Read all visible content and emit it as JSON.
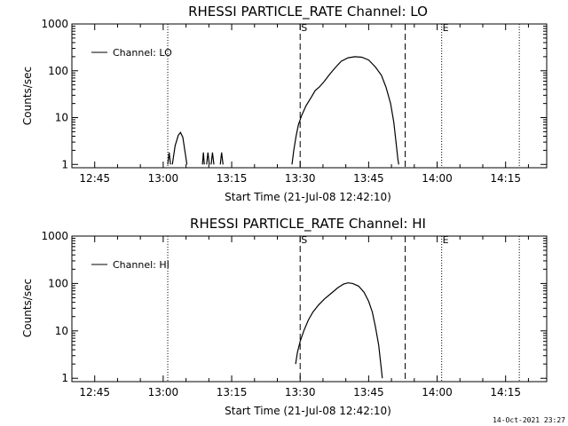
{
  "chart_data": [
    {
      "type": "line",
      "title": "RHESSI PARTICLE_RATE Channel: LO",
      "xlabel": "Start Time (21-Jul-08 12:42:10)",
      "ylabel": "Counts/sec",
      "y_scale": "log",
      "ylim": [
        0.85,
        1000
      ],
      "xlim": [
        "12:40",
        "14:24"
      ],
      "x_ticks": [
        "12:45",
        "13:00",
        "13:15",
        "13:30",
        "13:45",
        "14:00",
        "14:15"
      ],
      "y_ticks": [
        "1",
        "10",
        "100",
        "1000"
      ],
      "legend": {
        "placement": "top-left",
        "entries": [
          "Channel: LO"
        ]
      },
      "markers": [
        {
          "time": "13:30",
          "style": "dashed",
          "label": "S"
        },
        {
          "time": "13:53",
          "style": "dashed",
          "label": ""
        },
        {
          "time": "13:01",
          "style": "dotted",
          "label": ""
        },
        {
          "time": "14:01",
          "style": "dotted",
          "label": "E"
        },
        {
          "time": "14:18",
          "style": "dotted",
          "label": ""
        }
      ],
      "series": [
        {
          "name": "Channel: LO",
          "segments": [
            [
              [
                "13:01.0",
                1
              ],
              [
                "13:01.3",
                1.8
              ],
              [
                "13:01.6",
                1
              ]
            ],
            [
              [
                "13:02.0",
                1
              ],
              [
                "13:02.6",
                2.5
              ],
              [
                "13:03.3",
                4.2
              ],
              [
                "13:03.8",
                4.8
              ],
              [
                "13:04.3",
                3.8
              ],
              [
                "13:04.8",
                1.8
              ],
              [
                "13:05.2",
                1
              ]
            ],
            [
              [
                "13:08.6",
                1
              ],
              [
                "13:08.8",
                1.8
              ],
              [
                "13:09.0",
                1
              ]
            ],
            [
              [
                "13:09.5",
                1
              ],
              [
                "13:09.8",
                1.8
              ],
              [
                "13:10.1",
                1
              ]
            ],
            [
              [
                "13:10.5",
                1
              ],
              [
                "13:10.8",
                1.8
              ],
              [
                "13:11.1",
                1
              ]
            ],
            [
              [
                "13:12.5",
                1
              ],
              [
                "13:12.8",
                1.8
              ],
              [
                "13:13.1",
                1
              ]
            ],
            [
              [
                "13:28.2",
                1
              ],
              [
                "13:28.6",
                2
              ],
              [
                "13:29.1",
                4
              ],
              [
                "13:29.6",
                7
              ],
              [
                "13:30.3",
                11
              ],
              [
                "13:31.3",
                18
              ],
              [
                "13:32.5",
                28
              ],
              [
                "13:33.3",
                38
              ],
              [
                "13:34.2",
                45
              ],
              [
                "13:35.3",
                60
              ],
              [
                "13:36.5",
                85
              ],
              [
                "13:37.8",
                120
              ],
              [
                "13:39.0",
                160
              ],
              [
                "13:40.5",
                190
              ],
              [
                "13:42.0",
                200
              ],
              [
                "13:43.5",
                195
              ],
              [
                "13:45.0",
                170
              ],
              [
                "13:46.5",
                120
              ],
              [
                "13:47.8",
                80
              ],
              [
                "13:48.8",
                45
              ],
              [
                "13:49.8",
                20
              ],
              [
                "13:50.5",
                8
              ],
              [
                "13:51.0",
                3
              ],
              [
                "13:51.4",
                1.3
              ],
              [
                "13:51.6",
                1
              ]
            ]
          ]
        }
      ]
    },
    {
      "type": "line",
      "title": "RHESSI PARTICLE_RATE Channel: HI",
      "xlabel": "Start Time (21-Jul-08 12:42:10)",
      "ylabel": "Counts/sec",
      "y_scale": "log",
      "ylim": [
        0.85,
        1000
      ],
      "xlim": [
        "12:40",
        "14:24"
      ],
      "x_ticks": [
        "12:45",
        "13:00",
        "13:15",
        "13:30",
        "13:45",
        "14:00",
        "14:15"
      ],
      "y_ticks": [
        "1",
        "10",
        "100",
        "1000"
      ],
      "legend": {
        "placement": "top-left",
        "entries": [
          "Channel: HI"
        ]
      },
      "markers": [
        {
          "time": "13:30",
          "style": "dashed",
          "label": "S"
        },
        {
          "time": "13:53",
          "style": "dashed",
          "label": ""
        },
        {
          "time": "13:01",
          "style": "dotted",
          "label": ""
        },
        {
          "time": "14:01",
          "style": "dotted",
          "label": "E"
        },
        {
          "time": "14:18",
          "style": "dotted",
          "label": ""
        }
      ],
      "series": [
        {
          "name": "Channel: HI",
          "segments": [
            [
              [
                "13:29.0",
                2
              ],
              [
                "13:29.4",
                3.5
              ],
              [
                "13:30.0",
                6
              ],
              [
                "13:30.8",
                10
              ],
              [
                "13:31.8",
                17
              ],
              [
                "13:32.8",
                25
              ],
              [
                "13:34.0",
                35
              ],
              [
                "13:35.3",
                47
              ],
              [
                "13:36.8",
                62
              ],
              [
                "13:38.3",
                82
              ],
              [
                "13:39.5",
                97
              ],
              [
                "13:40.5",
                103
              ],
              [
                "13:41.5",
                100
              ],
              [
                "13:42.8",
                88
              ],
              [
                "13:44.0",
                65
              ],
              [
                "13:45.0",
                42
              ],
              [
                "13:45.8",
                25
              ],
              [
                "13:46.5",
                12
              ],
              [
                "13:47.2",
                5
              ],
              [
                "13:47.6",
                2.2
              ],
              [
                "13:48.0",
                1
              ]
            ]
          ]
        }
      ]
    }
  ],
  "footer": {
    "timestamp": "14-Oct-2021 23:27"
  }
}
